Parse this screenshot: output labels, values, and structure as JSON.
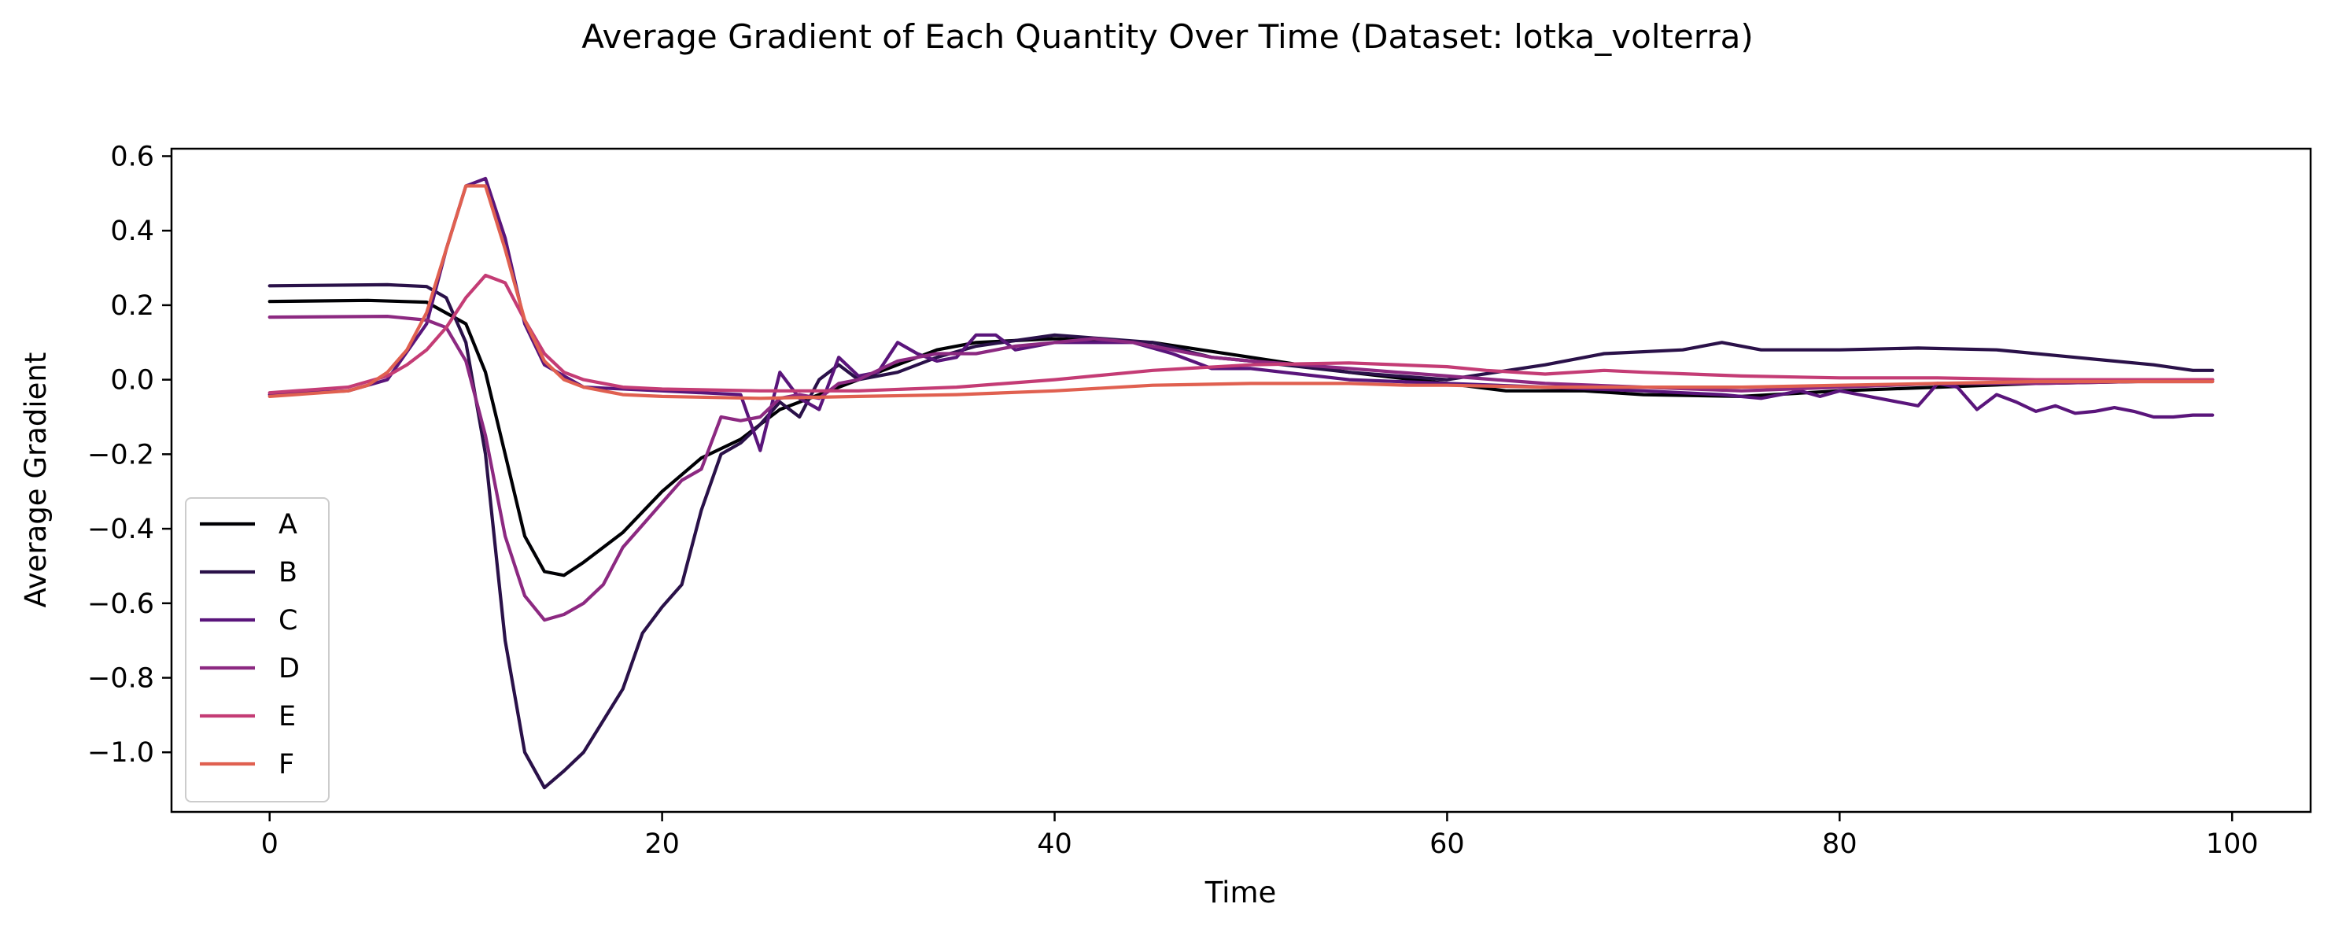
{
  "chart_data": {
    "type": "line",
    "title": "Average Gradient of Each Quantity Over Time (Dataset: lotka_volterra)",
    "xlabel": "Time",
    "ylabel": "Average Gradient",
    "xlim": [
      -5,
      104
    ],
    "ylim": [
      -1.16,
      0.62
    ],
    "xticks": [
      0,
      20,
      40,
      60,
      80,
      100
    ],
    "yticks": [
      0.6,
      0.4,
      0.2,
      0.0,
      -0.2,
      -0.4,
      -0.6,
      -0.8,
      -1.0
    ],
    "ytick_labels": [
      "0.6",
      "0.4",
      "0.2",
      "0.0",
      "−0.2",
      "−0.4",
      "−0.6",
      "−0.8",
      "−1.0"
    ],
    "grid": false,
    "legend_position": "lower-left",
    "series": [
      {
        "name": "A",
        "color": "#000004",
        "points": [
          [
            0,
            0.21
          ],
          [
            5,
            0.213
          ],
          [
            8,
            0.208
          ],
          [
            10,
            0.15
          ],
          [
            11,
            0.02
          ],
          [
            12,
            -0.2
          ],
          [
            13,
            -0.42
          ],
          [
            14,
            -0.515
          ],
          [
            15,
            -0.525
          ],
          [
            16,
            -0.49
          ],
          [
            18,
            -0.41
          ],
          [
            20,
            -0.3
          ],
          [
            22,
            -0.21
          ],
          [
            24,
            -0.16
          ],
          [
            26,
            -0.08
          ],
          [
            28,
            -0.04
          ],
          [
            30,
            0.0
          ],
          [
            32,
            0.04
          ],
          [
            34,
            0.08
          ],
          [
            36,
            0.1
          ],
          [
            40,
            0.11
          ],
          [
            45,
            0.1
          ],
          [
            50,
            0.06
          ],
          [
            55,
            0.02
          ],
          [
            60,
            -0.01
          ],
          [
            63,
            -0.03
          ],
          [
            67,
            -0.03
          ],
          [
            70,
            -0.04
          ],
          [
            75,
            -0.045
          ],
          [
            80,
            -0.03
          ],
          [
            85,
            -0.02
          ],
          [
            90,
            -0.01
          ],
          [
            95,
            -0.005
          ],
          [
            99,
            0.0
          ]
        ]
      },
      {
        "name": "B",
        "color": "#2a1149",
        "points": [
          [
            0,
            0.252
          ],
          [
            6,
            0.255
          ],
          [
            8,
            0.25
          ],
          [
            9,
            0.22
          ],
          [
            10,
            0.1
          ],
          [
            11,
            -0.2
          ],
          [
            12,
            -0.7
          ],
          [
            13,
            -1.0
          ],
          [
            14,
            -1.095
          ],
          [
            15,
            -1.05
          ],
          [
            16,
            -1.0
          ],
          [
            18,
            -0.83
          ],
          [
            19,
            -0.68
          ],
          [
            20,
            -0.61
          ],
          [
            21,
            -0.55
          ],
          [
            22,
            -0.35
          ],
          [
            23,
            -0.2
          ],
          [
            24,
            -0.17
          ],
          [
            25,
            -0.12
          ],
          [
            26,
            -0.06
          ],
          [
            27,
            -0.1
          ],
          [
            28,
            0.0
          ],
          [
            29,
            0.04
          ],
          [
            30,
            0.0
          ],
          [
            32,
            0.02
          ],
          [
            34,
            0.06
          ],
          [
            36,
            0.09
          ],
          [
            40,
            0.12
          ],
          [
            45,
            0.1
          ],
          [
            48,
            0.06
          ],
          [
            50,
            0.05
          ],
          [
            55,
            0.02
          ],
          [
            60,
            0.0
          ],
          [
            65,
            0.04
          ],
          [
            68,
            0.07
          ],
          [
            72,
            0.08
          ],
          [
            74,
            0.1
          ],
          [
            76,
            0.08
          ],
          [
            80,
            0.08
          ],
          [
            84,
            0.085
          ],
          [
            88,
            0.08
          ],
          [
            92,
            0.06
          ],
          [
            96,
            0.04
          ],
          [
            98,
            0.025
          ],
          [
            99,
            0.025
          ]
        ]
      },
      {
        "name": "C",
        "color": "#5a157b",
        "points": [
          [
            0,
            -0.04
          ],
          [
            4,
            -0.03
          ],
          [
            6,
            0.0
          ],
          [
            8,
            0.15
          ],
          [
            9,
            0.35
          ],
          [
            10,
            0.52
          ],
          [
            11,
            0.54
          ],
          [
            12,
            0.38
          ],
          [
            13,
            0.15
          ],
          [
            14,
            0.04
          ],
          [
            16,
            -0.02
          ],
          [
            20,
            -0.03
          ],
          [
            24,
            -0.04
          ],
          [
            25,
            -0.19
          ],
          [
            26,
            0.02
          ],
          [
            27,
            -0.05
          ],
          [
            28,
            -0.08
          ],
          [
            29,
            0.06
          ],
          [
            30,
            0.01
          ],
          [
            31,
            0.02
          ],
          [
            32,
            0.1
          ],
          [
            33,
            0.07
          ],
          [
            34,
            0.05
          ],
          [
            35,
            0.06
          ],
          [
            36,
            0.12
          ],
          [
            37,
            0.12
          ],
          [
            38,
            0.08
          ],
          [
            40,
            0.1
          ],
          [
            42,
            0.1
          ],
          [
            44,
            0.1
          ],
          [
            46,
            0.07
          ],
          [
            48,
            0.03
          ],
          [
            50,
            0.03
          ],
          [
            55,
            0.0
          ],
          [
            60,
            -0.01
          ],
          [
            65,
            -0.02
          ],
          [
            70,
            -0.03
          ],
          [
            74,
            -0.04
          ],
          [
            76,
            -0.05
          ],
          [
            78,
            -0.03
          ],
          [
            79,
            -0.045
          ],
          [
            80,
            -0.03
          ],
          [
            82,
            -0.05
          ],
          [
            84,
            -0.07
          ],
          [
            85,
            -0.01
          ],
          [
            86,
            -0.02
          ],
          [
            87,
            -0.08
          ],
          [
            88,
            -0.04
          ],
          [
            89,
            -0.06
          ],
          [
            90,
            -0.085
          ],
          [
            91,
            -0.07
          ],
          [
            92,
            -0.09
          ],
          [
            93,
            -0.085
          ],
          [
            94,
            -0.075
          ],
          [
            95,
            -0.085
          ],
          [
            96,
            -0.1
          ],
          [
            97,
            -0.1
          ],
          [
            98,
            -0.095
          ],
          [
            99,
            -0.095
          ]
        ]
      },
      {
        "name": "D",
        "color": "#8c2981",
        "points": [
          [
            0,
            0.168
          ],
          [
            6,
            0.17
          ],
          [
            8,
            0.16
          ],
          [
            9,
            0.14
          ],
          [
            10,
            0.05
          ],
          [
            11,
            -0.15
          ],
          [
            12,
            -0.42
          ],
          [
            13,
            -0.58
          ],
          [
            14,
            -0.645
          ],
          [
            15,
            -0.63
          ],
          [
            16,
            -0.6
          ],
          [
            17,
            -0.55
          ],
          [
            18,
            -0.45
          ],
          [
            19,
            -0.39
          ],
          [
            20,
            -0.33
          ],
          [
            21,
            -0.27
          ],
          [
            22,
            -0.24
          ],
          [
            23,
            -0.1
          ],
          [
            24,
            -0.11
          ],
          [
            25,
            -0.1
          ],
          [
            26,
            -0.05
          ],
          [
            27,
            -0.04
          ],
          [
            28,
            -0.05
          ],
          [
            29,
            -0.01
          ],
          [
            30,
            0.0
          ],
          [
            32,
            0.05
          ],
          [
            34,
            0.07
          ],
          [
            36,
            0.07
          ],
          [
            38,
            0.09
          ],
          [
            40,
            0.1
          ],
          [
            42,
            0.11
          ],
          [
            44,
            0.1
          ],
          [
            46,
            0.08
          ],
          [
            48,
            0.06
          ],
          [
            50,
            0.05
          ],
          [
            55,
            0.03
          ],
          [
            60,
            0.01
          ],
          [
            65,
            -0.01
          ],
          [
            70,
            -0.02
          ],
          [
            75,
            -0.03
          ],
          [
            80,
            -0.02
          ],
          [
            85,
            -0.01
          ],
          [
            90,
            -0.01
          ],
          [
            95,
            -0.005
          ],
          [
            99,
            -0.005
          ]
        ]
      },
      {
        "name": "E",
        "color": "#c43c75",
        "points": [
          [
            0,
            -0.035
          ],
          [
            4,
            -0.02
          ],
          [
            6,
            0.01
          ],
          [
            7,
            0.04
          ],
          [
            8,
            0.08
          ],
          [
            9,
            0.14
          ],
          [
            10,
            0.22
          ],
          [
            11,
            0.28
          ],
          [
            12,
            0.26
          ],
          [
            13,
            0.16
          ],
          [
            14,
            0.07
          ],
          [
            15,
            0.02
          ],
          [
            16,
            0.0
          ],
          [
            18,
            -0.02
          ],
          [
            20,
            -0.025
          ],
          [
            25,
            -0.03
          ],
          [
            30,
            -0.03
          ],
          [
            35,
            -0.02
          ],
          [
            40,
            0.0
          ],
          [
            45,
            0.025
          ],
          [
            50,
            0.04
          ],
          [
            55,
            0.045
          ],
          [
            60,
            0.035
          ],
          [
            62,
            0.025
          ],
          [
            65,
            0.015
          ],
          [
            68,
            0.025
          ],
          [
            70,
            0.02
          ],
          [
            75,
            0.01
          ],
          [
            80,
            0.005
          ],
          [
            85,
            0.005
          ],
          [
            90,
            0.0
          ],
          [
            95,
            0.0
          ],
          [
            99,
            0.0
          ]
        ]
      },
      {
        "name": "F",
        "color": "#e06050",
        "points": [
          [
            0,
            -0.045
          ],
          [
            4,
            -0.03
          ],
          [
            5,
            -0.015
          ],
          [
            6,
            0.02
          ],
          [
            7,
            0.08
          ],
          [
            8,
            0.18
          ],
          [
            9,
            0.35
          ],
          [
            10,
            0.52
          ],
          [
            11,
            0.52
          ],
          [
            12,
            0.35
          ],
          [
            13,
            0.16
          ],
          [
            14,
            0.05
          ],
          [
            15,
            0.0
          ],
          [
            16,
            -0.02
          ],
          [
            18,
            -0.04
          ],
          [
            20,
            -0.045
          ],
          [
            25,
            -0.05
          ],
          [
            30,
            -0.045
          ],
          [
            35,
            -0.04
          ],
          [
            40,
            -0.03
          ],
          [
            45,
            -0.015
          ],
          [
            50,
            -0.01
          ],
          [
            55,
            -0.01
          ],
          [
            58,
            -0.015
          ],
          [
            60,
            -0.015
          ],
          [
            65,
            -0.02
          ],
          [
            70,
            -0.02
          ],
          [
            75,
            -0.02
          ],
          [
            80,
            -0.015
          ],
          [
            85,
            -0.01
          ],
          [
            90,
            -0.005
          ],
          [
            95,
            -0.005
          ],
          [
            99,
            -0.005
          ]
        ]
      }
    ]
  }
}
